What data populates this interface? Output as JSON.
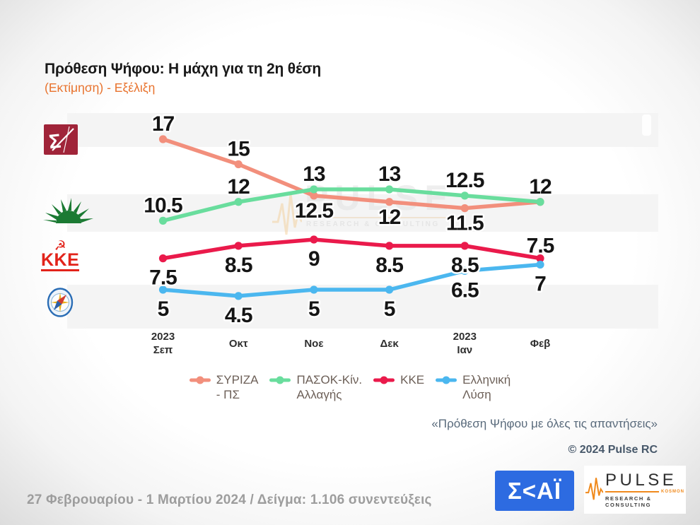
{
  "header": {
    "title": "Πρόθεση Ψήφου: Η μάχη για τη 2η θέση",
    "subtitle": "(Εκτίμηση) - Εξέλιξη"
  },
  "chart_data": {
    "type": "line",
    "title": "Πρόθεση Ψήφου: Η μάχη για τη 2η θέση",
    "subtitle": "(Εκτίμηση) - Εξέλιξη",
    "x_tick_labels": [
      "2023\nΣεπ",
      "Οκτ",
      "Νοε",
      "Δεκ",
      "2023\nΙαν",
      "Φεβ"
    ],
    "ylim": [
      4,
      18
    ],
    "grid": "off",
    "legend_position": "bottom",
    "series": [
      {
        "name": "ΣΥΡΙΖΑ - ΠΣ",
        "legend_label": "ΣΥΡΙΖΑ\n- ΠΣ",
        "color": "#F28F7C",
        "values": [
          17,
          15,
          12.5,
          12,
          11.5,
          12
        ],
        "label_sides": [
          "above",
          "above",
          "below",
          "below",
          "below",
          "none"
        ]
      },
      {
        "name": "ΠΑΣΟΚ-Κίν. Αλλαγής",
        "legend_label": "ΠΑΣΟΚ-Κίν.\nΑλλαγής",
        "color": "#69DD9D",
        "values": [
          10.5,
          12,
          13,
          13,
          12.5,
          12
        ],
        "label_sides": [
          "above",
          "above",
          "above",
          "above",
          "above",
          "above"
        ]
      },
      {
        "name": "ΚΚΕ",
        "legend_label": "ΚΚΕ",
        "color": "#EA1A4B",
        "values": [
          7.5,
          8.5,
          9,
          8.5,
          8.5,
          7.5
        ],
        "label_sides": [
          "below",
          "below",
          "below",
          "below",
          "below",
          "above"
        ]
      },
      {
        "name": "Ελληνική Λύση",
        "legend_label": "Ελληνική\nΛύση",
        "color": "#4BB7EF",
        "values": [
          5,
          4.5,
          5,
          5,
          6.5,
          7
        ],
        "label_sides": [
          "below",
          "below",
          "below",
          "below",
          "below",
          "below"
        ]
      }
    ]
  },
  "party_logos": [
    {
      "icon": "syriza-logo"
    },
    {
      "icon": "pasok-sun-logo"
    },
    {
      "icon": "kke-logo",
      "text": "KKE"
    },
    {
      "icon": "elliniki-lysi-compass-logo"
    }
  ],
  "footnotes": {
    "quote": "«Πρόθεση Ψήφου με όλες τις απαντήσεις»",
    "copyright": "© 2024 Pulse RC",
    "fieldwork": "27 Φεβρουαρίου - 1 Μαρτίου 2024  /  Δείγμα:  1.106 συνεντεύξεις"
  },
  "watermark": {
    "brand": "PULSE",
    "tagline": "RESEARCH & CONSULTING"
  },
  "footer_logos": {
    "skai_text": "Σ<ΑΪ",
    "pulse_brand": "PULSE",
    "pulse_small": "KOSMON",
    "pulse_tagline": "RESEARCH & CONSULTING"
  },
  "colors": {
    "syriza": "#F28F7C",
    "pasok": "#69DD9D",
    "kke": "#EA1A4B",
    "elliniki_lysi": "#4BB7EF",
    "subtitle_orange": "#E8732E",
    "skai_blue": "#2D6BE1",
    "pulse_orange": "#F08A1D",
    "stripe_gray": "#F4F4F4"
  }
}
